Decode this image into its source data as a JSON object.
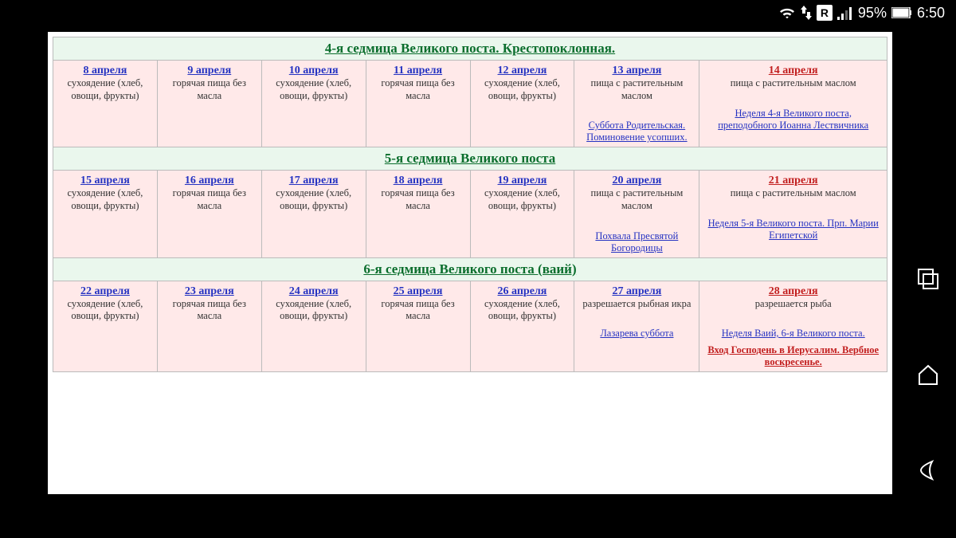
{
  "status": {
    "battery": "95%",
    "time": "6:50",
    "r": "R"
  },
  "col_widths": [
    "12.5%",
    "12.5%",
    "12.5%",
    "12.5%",
    "12.5%",
    "15%",
    "22.5%"
  ],
  "weeks": [
    {
      "title": "4-я седмица Великого поста. Крестопоклонная.",
      "days": [
        {
          "date": "8 апреля",
          "red": false,
          "text": "сухоядение (хлеб, овощи, фрукты)"
        },
        {
          "date": "9 апреля",
          "red": false,
          "text": "горячая пища без масла"
        },
        {
          "date": "10 апреля",
          "red": false,
          "text": "сухоядение (хлеб, овощи, фрукты)"
        },
        {
          "date": "11 апреля",
          "red": false,
          "text": "горячая пища без масла"
        },
        {
          "date": "12 апреля",
          "red": false,
          "text": "сухоядение (хлеб, овощи, фрукты)"
        },
        {
          "date": "13 апреля",
          "red": false,
          "text": "пища с растительным маслом",
          "sub": "Суббота Родительская. Поминовение усопших.",
          "sub_red": false
        },
        {
          "date": "14 апреля",
          "red": true,
          "text": "пища с растительным маслом",
          "sub": "Неделя 4-я Великого поста, преподобного Иоанна Лествичника",
          "sub_red": false
        }
      ]
    },
    {
      "title": "5-я седмица Великого поста",
      "days": [
        {
          "date": "15 апреля",
          "red": false,
          "text": "сухоядение (хлеб, овощи, фрукты)"
        },
        {
          "date": "16 апреля",
          "red": false,
          "text": "горячая пища без масла"
        },
        {
          "date": "17 апреля",
          "red": false,
          "text": "сухоядение (хлеб, овощи, фрукты)"
        },
        {
          "date": "18 апреля",
          "red": false,
          "text": "горячая пища без масла"
        },
        {
          "date": "19 апреля",
          "red": false,
          "text": "сухоядение (хлеб, овощи, фрукты)"
        },
        {
          "date": "20 апреля",
          "red": false,
          "text": "пища с растительным маслом",
          "sub": "Похвала Пресвятой Богородицы",
          "sub_red": false
        },
        {
          "date": "21 апреля",
          "red": true,
          "text": "пища с растительным маслом",
          "sub": "Неделя 5-я Великого поста. Прп. Марии Египетской",
          "sub_red": false
        }
      ]
    },
    {
      "title": "6-я седмица Великого поста (ваий)",
      "days": [
        {
          "date": "22 апреля",
          "red": false,
          "text": "сухоядение (хлеб, овощи, фрукты)"
        },
        {
          "date": "23 апреля",
          "red": false,
          "text": "горячая пища без масла"
        },
        {
          "date": "24 апреля",
          "red": false,
          "text": "сухоядение (хлеб, овощи, фрукты)"
        },
        {
          "date": "25 апреля",
          "red": false,
          "text": "горячая пища без масла"
        },
        {
          "date": "26 апреля",
          "red": false,
          "text": "сухоядение (хлеб, овощи, фрукты)"
        },
        {
          "date": "27 апреля",
          "red": false,
          "text": "разрешается рыбная икра",
          "sub": "Лазарева суббота",
          "sub_red": false
        },
        {
          "date": "28 апреля",
          "red": true,
          "text": "разрешается рыба",
          "sub": "Неделя Ваий, 6-я Великого поста.",
          "sub2": "Вход Господень в Иерусалим. Вербное воскресенье.",
          "sub_red": false,
          "sub2_red": true
        }
      ]
    }
  ]
}
